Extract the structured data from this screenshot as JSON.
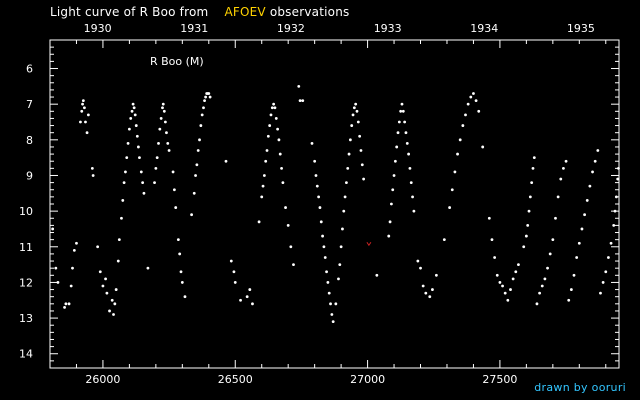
{
  "header": {
    "title_prefix": "Light curve of R Boo from",
    "title_source": "AFOEV",
    "title_suffix": "observations"
  },
  "footer": {
    "credit": "drawn by ooruri"
  },
  "colors": {
    "background": "#000000",
    "axis": "#ffffff",
    "points": "#ffffff",
    "highlight": "#ffd200",
    "credit": "#33c6ff",
    "outlier": "#cc2222"
  },
  "chart_data": {
    "type": "scatter",
    "annotation": "R Boo (M)",
    "xlim": [
      25800,
      27950
    ],
    "ylim": [
      14.4,
      5.2
    ],
    "x_ticks": [
      26000,
      26500,
      27000,
      27500
    ],
    "y_ticks": [
      6,
      7,
      8,
      9,
      10,
      11,
      12,
      13,
      14
    ],
    "top_axis_labels": [
      {
        "label": "1930",
        "jd": 25980
      },
      {
        "label": "1931",
        "jd": 26345
      },
      {
        "label": "1932",
        "jd": 26710
      },
      {
        "label": "1933",
        "jd": 27076
      },
      {
        "label": "1934",
        "jd": 27441
      },
      {
        "label": "1935",
        "jd": 27806
      }
    ],
    "outlier": {
      "x": 27005,
      "y": 10.9
    },
    "series": [
      {
        "points": [
          [
            25810,
            10.5
          ],
          [
            25822,
            11.6
          ],
          [
            25830,
            12.0
          ],
          [
            25855,
            12.7
          ],
          [
            25860,
            12.6
          ],
          [
            25872,
            12.6
          ],
          [
            25880,
            12.1
          ],
          [
            25885,
            11.6
          ],
          [
            25892,
            11.1
          ],
          [
            25900,
            10.9
          ],
          [
            25915,
            7.5
          ],
          [
            25920,
            7.2
          ],
          [
            25923,
            7.0
          ],
          [
            25926,
            6.9
          ],
          [
            25930,
            7.1
          ],
          [
            25934,
            7.5
          ],
          [
            25940,
            7.8
          ],
          [
            25945,
            7.3
          ],
          [
            25960,
            8.8
          ],
          [
            25963,
            9.0
          ],
          [
            25980,
            11.0
          ],
          [
            25990,
            11.7
          ],
          [
            26000,
            12.1
          ],
          [
            26010,
            11.9
          ],
          [
            26015,
            12.3
          ],
          [
            26025,
            12.8
          ],
          [
            26035,
            12.5
          ],
          [
            26040,
            12.9
          ],
          [
            26045,
            12.6
          ],
          [
            26050,
            12.2
          ],
          [
            26058,
            11.4
          ],
          [
            26062,
            10.8
          ],
          [
            26070,
            10.2
          ],
          [
            26075,
            9.7
          ],
          [
            26080,
            9.2
          ],
          [
            26085,
            8.9
          ],
          [
            26090,
            8.5
          ],
          [
            26095,
            8.1
          ],
          [
            26100,
            7.7
          ],
          [
            26105,
            7.4
          ],
          [
            26110,
            7.2
          ],
          [
            26114,
            7.0
          ],
          [
            26118,
            7.1
          ],
          [
            26122,
            7.3
          ],
          [
            26126,
            7.6
          ],
          [
            26130,
            7.9
          ],
          [
            26134,
            8.2
          ],
          [
            26138,
            8.5
          ],
          [
            26145,
            8.9
          ],
          [
            26150,
            9.2
          ],
          [
            26155,
            9.5
          ],
          [
            26170,
            11.6
          ],
          [
            26195,
            9.2
          ],
          [
            26200,
            8.8
          ],
          [
            26205,
            8.5
          ],
          [
            26210,
            8.1
          ],
          [
            26215,
            7.7
          ],
          [
            26220,
            7.4
          ],
          [
            26225,
            7.1
          ],
          [
            26228,
            7.0
          ],
          [
            26232,
            7.2
          ],
          [
            26236,
            7.5
          ],
          [
            26240,
            7.8
          ],
          [
            26245,
            8.1
          ],
          [
            26250,
            8.3
          ],
          [
            26265,
            8.9
          ],
          [
            26270,
            9.4
          ],
          [
            26275,
            9.9
          ],
          [
            26285,
            10.8
          ],
          [
            26290,
            11.2
          ],
          [
            26295,
            11.7
          ],
          [
            26300,
            12.0
          ],
          [
            26310,
            12.4
          ],
          [
            26335,
            10.1
          ],
          [
            26345,
            9.5
          ],
          [
            26350,
            9.0
          ],
          [
            26355,
            8.7
          ],
          [
            26360,
            8.3
          ],
          [
            26365,
            8.0
          ],
          [
            26370,
            7.6
          ],
          [
            26375,
            7.3
          ],
          [
            26380,
            7.1
          ],
          [
            26384,
            6.9
          ],
          [
            26388,
            6.8
          ],
          [
            26392,
            6.7
          ],
          [
            26396,
            6.7
          ],
          [
            26400,
            6.7
          ],
          [
            26405,
            6.8
          ],
          [
            26465,
            8.6
          ],
          [
            26485,
            11.4
          ],
          [
            26495,
            11.7
          ],
          [
            26500,
            12.0
          ],
          [
            26520,
            12.5
          ],
          [
            26545,
            12.4
          ],
          [
            26555,
            12.2
          ],
          [
            26565,
            12.6
          ],
          [
            26590,
            10.3
          ],
          [
            26600,
            9.6
          ],
          [
            26605,
            9.3
          ],
          [
            26610,
            9.0
          ],
          [
            26615,
            8.6
          ],
          [
            26620,
            8.3
          ],
          [
            26625,
            7.9
          ],
          [
            26630,
            7.6
          ],
          [
            26635,
            7.3
          ],
          [
            26640,
            7.1
          ],
          [
            26645,
            7.0
          ],
          [
            26650,
            7.1
          ],
          [
            26655,
            7.4
          ],
          [
            26660,
            7.7
          ],
          [
            26665,
            8.0
          ],
          [
            26670,
            8.4
          ],
          [
            26675,
            8.8
          ],
          [
            26680,
            9.2
          ],
          [
            26690,
            9.9
          ],
          [
            26700,
            10.4
          ],
          [
            26710,
            11.0
          ],
          [
            26720,
            11.5
          ],
          [
            26740,
            6.5
          ],
          [
            26745,
            6.9
          ],
          [
            26755,
            6.9
          ],
          [
            26790,
            8.1
          ],
          [
            26800,
            8.6
          ],
          [
            26805,
            9.0
          ],
          [
            26810,
            9.3
          ],
          [
            26815,
            9.6
          ],
          [
            26820,
            9.9
          ],
          [
            26825,
            10.3
          ],
          [
            26830,
            10.7
          ],
          [
            26835,
            11.0
          ],
          [
            26840,
            11.3
          ],
          [
            26845,
            11.7
          ],
          [
            26850,
            12.0
          ],
          [
            26855,
            12.3
          ],
          [
            26860,
            12.6
          ],
          [
            26865,
            12.9
          ],
          [
            26870,
            13.1
          ],
          [
            26880,
            12.6
          ],
          [
            26890,
            11.9
          ],
          [
            26895,
            11.5
          ],
          [
            26900,
            11.0
          ],
          [
            26905,
            10.5
          ],
          [
            26910,
            10.0
          ],
          [
            26915,
            9.6
          ],
          [
            26920,
            9.2
          ],
          [
            26925,
            8.8
          ],
          [
            26930,
            8.4
          ],
          [
            26935,
            8.0
          ],
          [
            26940,
            7.6
          ],
          [
            26945,
            7.3
          ],
          [
            26950,
            7.1
          ],
          [
            26955,
            7.0
          ],
          [
            26960,
            7.2
          ],
          [
            26965,
            7.5
          ],
          [
            26970,
            7.9
          ],
          [
            26975,
            8.3
          ],
          [
            26980,
            8.7
          ],
          [
            26985,
            9.1
          ],
          [
            27035,
            11.8
          ],
          [
            27080,
            10.7
          ],
          [
            27085,
            10.3
          ],
          [
            27090,
            9.8
          ],
          [
            27095,
            9.4
          ],
          [
            27100,
            9.0
          ],
          [
            27105,
            8.6
          ],
          [
            27110,
            8.2
          ],
          [
            27115,
            7.8
          ],
          [
            27120,
            7.5
          ],
          [
            27125,
            7.2
          ],
          [
            27130,
            7.0
          ],
          [
            27135,
            7.2
          ],
          [
            27140,
            7.5
          ],
          [
            27145,
            7.8
          ],
          [
            27150,
            8.1
          ],
          [
            27155,
            8.4
          ],
          [
            27160,
            8.8
          ],
          [
            27165,
            9.2
          ],
          [
            27170,
            9.6
          ],
          [
            27175,
            10.0
          ],
          [
            27190,
            11.4
          ],
          [
            27200,
            11.6
          ],
          [
            27210,
            12.1
          ],
          [
            27220,
            12.3
          ],
          [
            27235,
            12.4
          ],
          [
            27245,
            12.2
          ],
          [
            27260,
            11.8
          ],
          [
            27290,
            10.8
          ],
          [
            27310,
            9.9
          ],
          [
            27320,
            9.4
          ],
          [
            27330,
            8.9
          ],
          [
            27340,
            8.4
          ],
          [
            27350,
            8.0
          ],
          [
            27360,
            7.6
          ],
          [
            27370,
            7.3
          ],
          [
            27380,
            7.0
          ],
          [
            27390,
            6.8
          ],
          [
            27400,
            6.7
          ],
          [
            27410,
            6.9
          ],
          [
            27420,
            7.2
          ],
          [
            27435,
            8.2
          ],
          [
            27460,
            10.2
          ],
          [
            27470,
            10.8
          ],
          [
            27480,
            11.3
          ],
          [
            27490,
            11.8
          ],
          [
            27500,
            12.0
          ],
          [
            27510,
            12.1
          ],
          [
            27520,
            12.3
          ],
          [
            27530,
            12.5
          ],
          [
            27540,
            12.2
          ],
          [
            27550,
            11.9
          ],
          [
            27560,
            11.7
          ],
          [
            27570,
            11.5
          ],
          [
            27590,
            11.0
          ],
          [
            27600,
            10.7
          ],
          [
            27605,
            10.4
          ],
          [
            27610,
            10.0
          ],
          [
            27615,
            9.6
          ],
          [
            27620,
            9.2
          ],
          [
            27625,
            8.8
          ],
          [
            27630,
            8.5
          ],
          [
            27640,
            12.6
          ],
          [
            27650,
            12.3
          ],
          [
            27660,
            12.1
          ],
          [
            27670,
            11.9
          ],
          [
            27680,
            11.6
          ],
          [
            27690,
            11.2
          ],
          [
            27700,
            10.8
          ],
          [
            27710,
            10.2
          ],
          [
            27720,
            9.6
          ],
          [
            27730,
            9.1
          ],
          [
            27740,
            8.8
          ],
          [
            27750,
            8.6
          ],
          [
            27760,
            12.5
          ],
          [
            27770,
            12.2
          ],
          [
            27780,
            11.8
          ],
          [
            27790,
            11.3
          ],
          [
            27800,
            10.9
          ],
          [
            27810,
            10.5
          ],
          [
            27820,
            10.1
          ],
          [
            27830,
            9.7
          ],
          [
            27840,
            9.3
          ],
          [
            27850,
            8.9
          ],
          [
            27860,
            8.6
          ],
          [
            27870,
            8.3
          ],
          [
            27880,
            12.3
          ],
          [
            27890,
            12.0
          ],
          [
            27900,
            11.7
          ],
          [
            27910,
            11.3
          ],
          [
            27920,
            10.9
          ],
          [
            27930,
            10.4
          ],
          [
            27935,
            10.0
          ],
          [
            27940,
            9.6
          ],
          [
            27945,
            9.1
          ],
          [
            27948,
            8.8
          ]
        ]
      }
    ]
  }
}
